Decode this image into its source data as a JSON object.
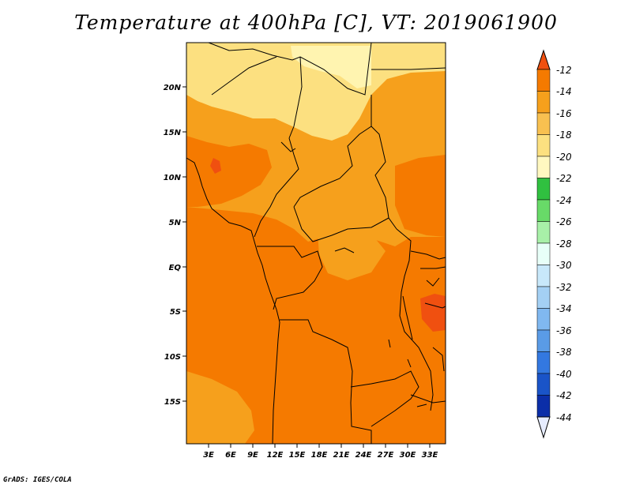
{
  "title": "Temperature at 400hPa [C], VT: 2019061900",
  "credit": "GrADS: IGES/COLA",
  "map": {
    "lat_ticks": [
      "20N",
      "15N",
      "10N",
      "5N",
      "EQ",
      "5S",
      "10S",
      "15S"
    ],
    "lon_ticks": [
      "3E",
      "6E",
      "9E",
      "12E",
      "15E",
      "18E",
      "21E",
      "24E",
      "27E",
      "30E",
      "33E"
    ]
  },
  "colorbar": {
    "labels": [
      "-12",
      "-14",
      "-16",
      "-18",
      "-20",
      "-22",
      "-24",
      "-26",
      "-28",
      "-30",
      "-32",
      "-34",
      "-36",
      "-38",
      "-40",
      "-42",
      "-44"
    ],
    "colors": [
      "#f05010",
      "#f57a00",
      "#f6a01c",
      "#f8c050",
      "#fce080",
      "#fff8c0",
      "#30c040",
      "#68da68",
      "#a8f0a8",
      "#e8fff8",
      "#c8e8fa",
      "#a4d0f4",
      "#80b8f0",
      "#5a9be6",
      "#3378e0",
      "#1a54c8",
      "#0b2ea8",
      "#101a70",
      "#e6ecff"
    ]
  }
}
